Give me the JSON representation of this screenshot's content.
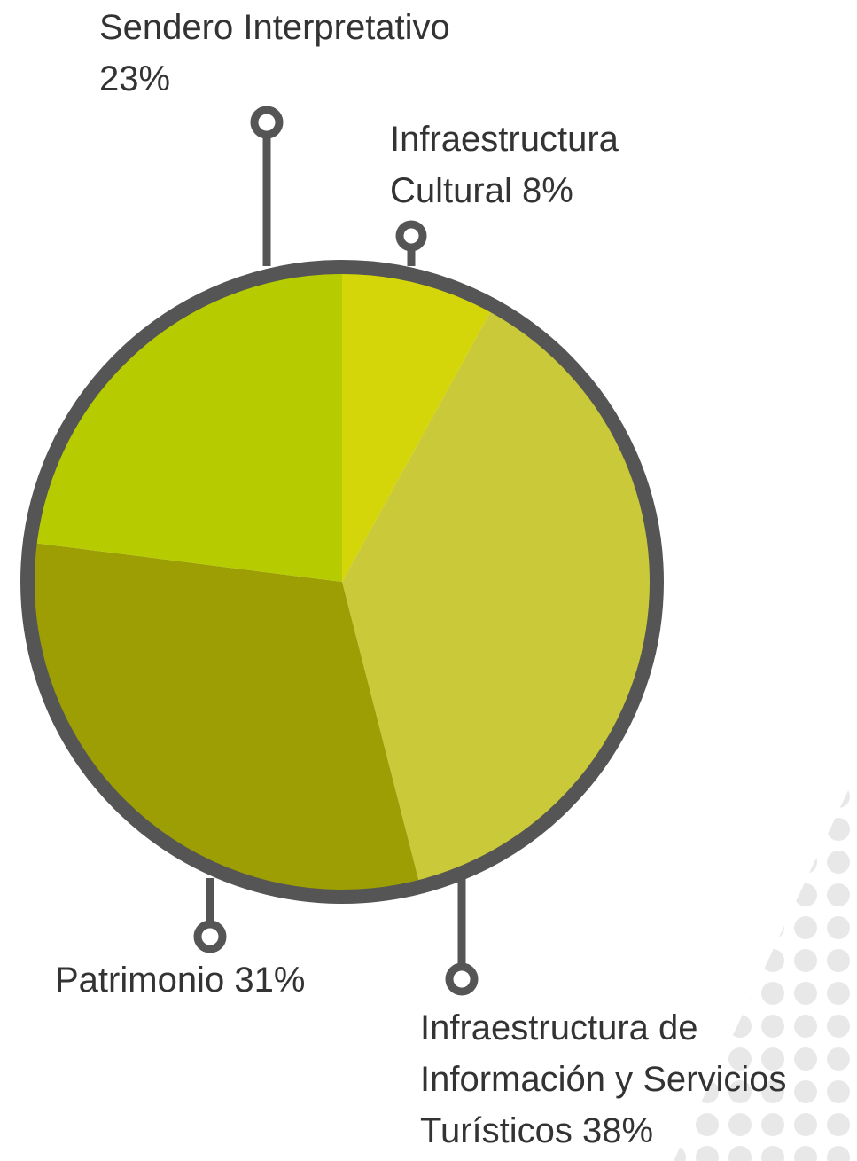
{
  "chart_data": {
    "type": "pie",
    "categories": [
      "Infraestructura Cultural",
      "Infraestructura de Información y Servicios Turísticos",
      "Patrimonio",
      "Sendero Interpretativo"
    ],
    "values": [
      8,
      38,
      31,
      23
    ],
    "value_labels": [
      "8%",
      "38%",
      "31%",
      "23%"
    ],
    "colors": [
      "#d4d60a",
      "#c9c93a",
      "#9c9e04",
      "#b7cc00"
    ]
  }
}
